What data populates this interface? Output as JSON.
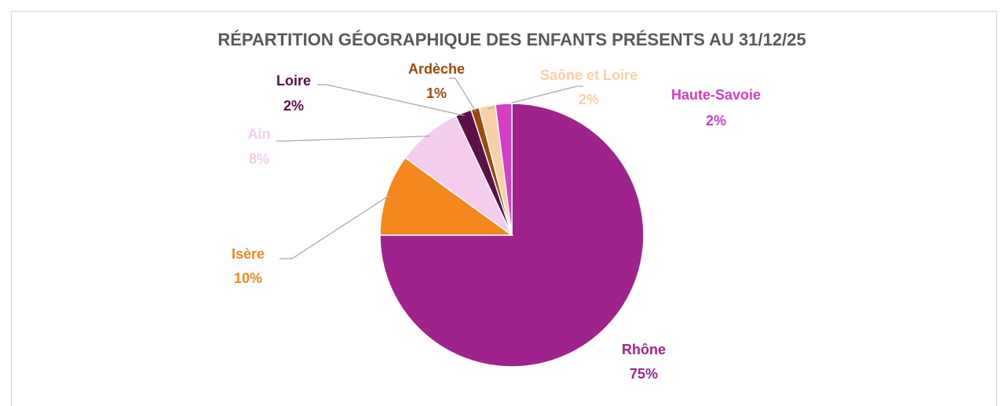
{
  "chart_data": {
    "type": "pie",
    "title": "RÉPARTITION GÉOGRAPHIQUE DES ENFANTS PRÉSENTS AU 31/12/25",
    "categories": [
      "Rhône",
      "Isère",
      "Ain",
      "Loire",
      "Ardèche",
      "Saône et Loire",
      "Haute-Savoie"
    ],
    "values": [
      75,
      10,
      8,
      2,
      1,
      2,
      2
    ],
    "value_labels": [
      "75%",
      "10%",
      "8%",
      "2%",
      "1%",
      "2%",
      "2%"
    ],
    "colors": [
      "#a0228c",
      "#f5871f",
      "#f4cdee",
      "#5c1048",
      "#9b4a0e",
      "#f9cfa6",
      "#d43dc4"
    ]
  }
}
